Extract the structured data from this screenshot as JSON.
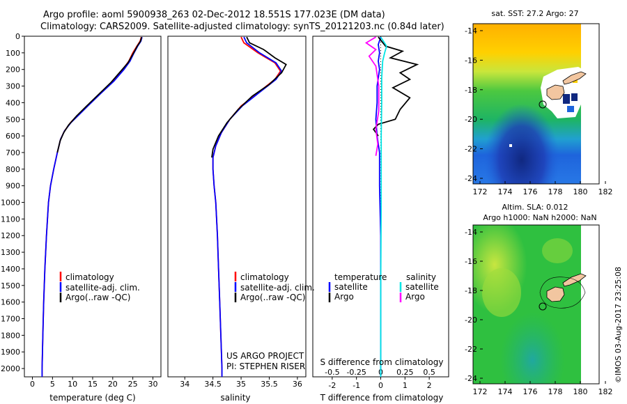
{
  "title_line1": "Argo profile: aoml 5900938_263 02-Dec-2012 18.551S 177.023E (DM data)",
  "title_line2": "Climatology: CARS2009. Satellite-adjusted climatology: synTS_20121203.nc (0.84d later)",
  "watermark": "©IMOS 03-Aug-2017 23:25:08",
  "colors": {
    "climatology": "#ff0000",
    "satellite": "#0000ff",
    "argo": "#000000",
    "sal_satellite": "#00e5e5",
    "sal_argo": "#ff00ff",
    "land": "#f2c6a0"
  },
  "chart_data": [
    {
      "type": "line",
      "xlabel": "temperature (deg C)",
      "xticks": [
        0,
        5,
        10,
        15,
        20,
        25,
        30
      ],
      "xlim": [
        -2,
        32
      ],
      "ylim": [
        0,
        2050
      ],
      "yticks": [
        0,
        100,
        200,
        300,
        400,
        500,
        600,
        700,
        800,
        900,
        1000,
        1100,
        1200,
        1300,
        1400,
        1500,
        1600,
        1700,
        1800,
        1900,
        2000
      ],
      "legend": [
        "climatology",
        "satellite-adj. clim.",
        "Argo(..raw -QC)"
      ],
      "series": [
        {
          "name": "climatology",
          "points": [
            [
              27.1,
              5
            ],
            [
              26.8,
              30
            ],
            [
              26,
              60
            ],
            [
              25,
              100
            ],
            [
              24,
              150
            ],
            [
              22.5,
              200
            ],
            [
              20,
              270
            ],
            [
              17,
              340
            ],
            [
              14,
              410
            ],
            [
              11.5,
              470
            ],
            [
              9.5,
              520
            ],
            [
              8,
              570
            ],
            [
              7,
              620
            ],
            [
              6.2,
              700
            ],
            [
              5.3,
              800
            ],
            [
              4.5,
              900
            ],
            [
              4,
              1000
            ],
            [
              3.5,
              1200
            ],
            [
              3.1,
              1400
            ],
            [
              2.8,
              1600
            ],
            [
              2.6,
              1800
            ],
            [
              2.4,
              2000
            ],
            [
              2.4,
              2050
            ]
          ]
        },
        {
          "name": "satellite-adj. clim.",
          "points": [
            [
              27.3,
              5
            ],
            [
              27,
              30
            ],
            [
              26.2,
              60
            ],
            [
              25.3,
              100
            ],
            [
              24.3,
              150
            ],
            [
              22.8,
              200
            ],
            [
              20.3,
              270
            ],
            [
              17.2,
              340
            ],
            [
              14.2,
              410
            ],
            [
              11.7,
              470
            ],
            [
              9.6,
              520
            ],
            [
              8,
              570
            ],
            [
              7,
              620
            ],
            [
              6.2,
              700
            ],
            [
              5.3,
              800
            ],
            [
              4.5,
              900
            ],
            [
              4,
              1000
            ],
            [
              3.5,
              1200
            ],
            [
              3.1,
              1400
            ],
            [
              2.8,
              1600
            ],
            [
              2.6,
              1800
            ],
            [
              2.4,
              2000
            ],
            [
              2.4,
              2050
            ]
          ]
        },
        {
          "name": "Argo(..raw -QC)",
          "points": [
            [
              27.2,
              5
            ],
            [
              26.9,
              30
            ],
            [
              26.1,
              60
            ],
            [
              25.2,
              100
            ],
            [
              23.8,
              160
            ],
            [
              22,
              210
            ],
            [
              19.5,
              280
            ],
            [
              16.5,
              350
            ],
            [
              13.5,
              420
            ],
            [
              11,
              480
            ],
            [
              9,
              535
            ],
            [
              7.8,
              580
            ],
            [
              6.9,
              630
            ],
            [
              6.2,
              700
            ]
          ]
        }
      ]
    },
    {
      "type": "line",
      "xlabel": "salinity",
      "xticks": [
        34,
        34.5,
        35,
        35.5,
        36
      ],
      "xlim": [
        33.7,
        36.15
      ],
      "ylim": [
        0,
        2050
      ],
      "legend": [
        "climatology",
        "satellite-adj. clim.",
        "Argo(..raw -QC)"
      ],
      "annotation": [
        "US ARGO PROJECT",
        "PI: STEPHEN RISER"
      ],
      "series": [
        {
          "name": "climatology",
          "points": [
            [
              35,
              5
            ],
            [
              35.05,
              40
            ],
            [
              35.3,
              100
            ],
            [
              35.6,
              160
            ],
            [
              35.7,
              210
            ],
            [
              35.6,
              260
            ],
            [
              35.3,
              340
            ],
            [
              35,
              420
            ],
            [
              34.8,
              500
            ],
            [
              34.65,
              580
            ],
            [
              34.55,
              660
            ],
            [
              34.5,
              730
            ],
            [
              34.5,
              800
            ],
            [
              34.52,
              900
            ],
            [
              34.55,
              1000
            ],
            [
              34.58,
              1200
            ],
            [
              34.6,
              1400
            ],
            [
              34.62,
              1600
            ],
            [
              34.64,
              1800
            ],
            [
              34.66,
              2000
            ],
            [
              34.66,
              2050
            ]
          ]
        },
        {
          "name": "satellite-adj. clim.",
          "points": [
            [
              35.05,
              5
            ],
            [
              35.1,
              40
            ],
            [
              35.33,
              100
            ],
            [
              35.62,
              160
            ],
            [
              35.72,
              210
            ],
            [
              35.62,
              260
            ],
            [
              35.32,
              340
            ],
            [
              35.02,
              420
            ],
            [
              34.8,
              500
            ],
            [
              34.65,
              580
            ],
            [
              34.55,
              660
            ],
            [
              34.5,
              730
            ],
            [
              34.5,
              800
            ],
            [
              34.52,
              900
            ],
            [
              34.55,
              1000
            ],
            [
              34.58,
              1200
            ],
            [
              34.6,
              1400
            ],
            [
              34.62,
              1600
            ],
            [
              34.64,
              1800
            ],
            [
              34.66,
              2000
            ],
            [
              34.66,
              2050
            ]
          ]
        },
        {
          "name": "Argo(..raw -QC)",
          "points": [
            [
              35.1,
              5
            ],
            [
              35.15,
              40
            ],
            [
              35.4,
              80
            ],
            [
              35.6,
              130
            ],
            [
              35.8,
              170
            ],
            [
              35.72,
              220
            ],
            [
              35.5,
              290
            ],
            [
              35.2,
              360
            ],
            [
              34.95,
              440
            ],
            [
              34.75,
              520
            ],
            [
              34.6,
              600
            ],
            [
              34.5,
              680
            ],
            [
              34.48,
              730
            ]
          ]
        }
      ]
    },
    {
      "type": "line",
      "xlabel": "T difference from climatology",
      "xlabel_top": "S difference from climatology",
      "xticks_bottom": [
        "-2",
        "-1",
        "0",
        "1",
        "2"
      ],
      "xticks_bottom_values": [
        -2,
        -1,
        0,
        1,
        2
      ],
      "xticks_top": [
        "-0.5",
        "-0.25",
        "0",
        "0.25",
        "0.5"
      ],
      "xticks_top_values": [
        -0.5,
        -0.25,
        0,
        0.25,
        0.5
      ],
      "xlim": [
        -2.8,
        2.8
      ],
      "legend_left_title": "temperature",
      "legend_right_title": "salinity",
      "legend": [
        "satellite",
        "Argo",
        "satellite",
        "Argo"
      ],
      "series": [
        {
          "name": "satellite",
          "points": [
            [
              0,
              5
            ],
            [
              -0.1,
              50
            ],
            [
              -0.05,
              100
            ],
            [
              -0.1,
              150
            ],
            [
              -0.05,
              200
            ],
            [
              -0.15,
              300
            ],
            [
              -0.15,
              400
            ],
            [
              -0.2,
              500
            ],
            [
              -0.15,
              600
            ],
            [
              -0.05,
              700
            ],
            [
              -0.05,
              900
            ],
            [
              0,
              1200
            ],
            [
              0,
              1600
            ],
            [
              0,
              2050
            ]
          ]
        },
        {
          "name": "Argo",
          "points": [
            [
              -0.1,
              5
            ],
            [
              0.2,
              60
            ],
            [
              0.9,
              90
            ],
            [
              0.4,
              130
            ],
            [
              1.5,
              170
            ],
            [
              0.8,
              220
            ],
            [
              1.2,
              260
            ],
            [
              0.5,
              310
            ],
            [
              1.2,
              370
            ],
            [
              0.8,
              440
            ],
            [
              0.6,
              500
            ],
            [
              -0.1,
              530
            ],
            [
              -0.3,
              560
            ],
            [
              -0.1,
              600
            ]
          ]
        },
        {
          "name": "satellite",
          "points": [
            [
              0,
              5
            ],
            [
              0.06,
              60
            ],
            [
              0.04,
              100
            ],
            [
              0.02,
              150
            ],
            [
              0.01,
              250
            ],
            [
              0.01,
              400
            ],
            [
              0.005,
              600
            ],
            [
              0.005,
              1000
            ],
            [
              0,
              1500
            ],
            [
              0,
              2050
            ]
          ]
        },
        {
          "name": "Argo",
          "points": [
            [
              -0.05,
              5
            ],
            [
              -0.15,
              40
            ],
            [
              -0.05,
              80
            ],
            [
              -0.12,
              120
            ],
            [
              -0.05,
              180
            ],
            [
              -0.02,
              300
            ],
            [
              -0.02,
              450
            ],
            [
              -0.05,
              560
            ],
            [
              -0.03,
              650
            ],
            [
              -0.05,
              720
            ]
          ]
        }
      ]
    },
    {
      "type": "heatmap",
      "title": "sat. SST: 27.2  Argo: 27",
      "xticks": [
        "172",
        "174",
        "176",
        "178",
        "180",
        "182"
      ],
      "yticks": [
        "-14",
        "-16",
        "-18",
        "-20",
        "-22",
        "-24"
      ],
      "profile_location": [
        177.023,
        -18.551
      ]
    },
    {
      "type": "heatmap",
      "title": "Altim. SLA: 0.012",
      "subtitle": "Argo h1000: NaN h2000: NaN",
      "xticks": [
        "172",
        "174",
        "176",
        "178",
        "180",
        "182"
      ],
      "yticks": [
        "-14",
        "-16",
        "-18",
        "-20",
        "-22",
        "-24"
      ],
      "profile_location": [
        177.023,
        -18.551
      ]
    }
  ]
}
